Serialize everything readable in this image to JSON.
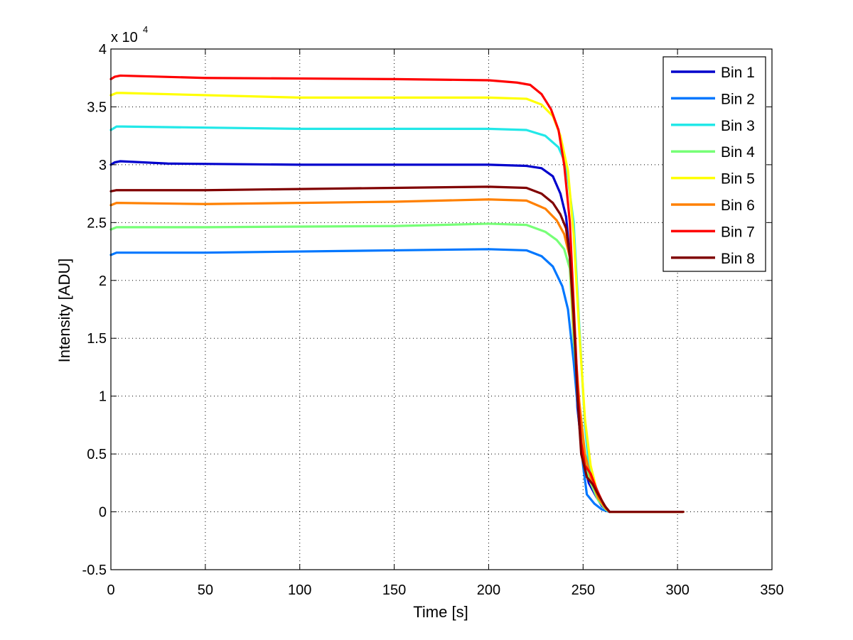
{
  "chart_data": {
    "type": "line",
    "title": "",
    "xlabel": "Time [s]",
    "ylabel": "Intensity [ADU]",
    "xlim": [
      0,
      350
    ],
    "ylim": [
      -0.5,
      4
    ],
    "xticks": [
      0,
      50,
      100,
      150,
      200,
      250,
      300,
      350
    ],
    "xtick_labels": [
      "0",
      "50",
      "100",
      "150",
      "200",
      "250",
      "300",
      "350"
    ],
    "yticks": [
      -0.5,
      0,
      0.5,
      1,
      1.5,
      2,
      2.5,
      3,
      3.5,
      4
    ],
    "ytick_labels": [
      "-0.5",
      "0",
      "0.5",
      "1",
      "1.5",
      "2",
      "2.5",
      "3",
      "3.5",
      "4"
    ],
    "y_multiplier": {
      "base": "x 10",
      "exponent": "4"
    },
    "grid": true,
    "legend_position": "top-right",
    "series": [
      {
        "name": "Bin 1",
        "color": "#0000cc",
        "points": [
          [
            0,
            3.0
          ],
          [
            2,
            3.02
          ],
          [
            5,
            3.03
          ],
          [
            30,
            3.01
          ],
          [
            100,
            3.0
          ],
          [
            200,
            3.0
          ],
          [
            220,
            2.99
          ],
          [
            228,
            2.97
          ],
          [
            234,
            2.9
          ],
          [
            238,
            2.75
          ],
          [
            241,
            2.55
          ],
          [
            243,
            2.2
          ],
          [
            245,
            1.6
          ],
          [
            247,
            0.9
          ],
          [
            250,
            0.45
          ],
          [
            253,
            0.25
          ],
          [
            257,
            0.13
          ],
          [
            260,
            0.05
          ],
          [
            264,
            0.0
          ],
          [
            303,
            0.0
          ]
        ]
      },
      {
        "name": "Bin 2",
        "color": "#0077ff",
        "points": [
          [
            0,
            2.22
          ],
          [
            3,
            2.24
          ],
          [
            50,
            2.24
          ],
          [
            150,
            2.26
          ],
          [
            200,
            2.27
          ],
          [
            220,
            2.26
          ],
          [
            228,
            2.21
          ],
          [
            234,
            2.12
          ],
          [
            239,
            1.95
          ],
          [
            242,
            1.75
          ],
          [
            245,
            1.3
          ],
          [
            248,
            0.75
          ],
          [
            250,
            0.4
          ],
          [
            252,
            0.15
          ],
          [
            256,
            0.07
          ],
          [
            260,
            0.02
          ],
          [
            264,
            0.0
          ],
          [
            303,
            0.0
          ]
        ]
      },
      {
        "name": "Bin 3",
        "color": "#22e8e8",
        "points": [
          [
            0,
            3.3
          ],
          [
            3,
            3.33
          ],
          [
            6,
            3.33
          ],
          [
            100,
            3.31
          ],
          [
            200,
            3.31
          ],
          [
            220,
            3.3
          ],
          [
            230,
            3.25
          ],
          [
            237,
            3.15
          ],
          [
            241,
            3.0
          ],
          [
            245,
            2.5
          ],
          [
            248,
            1.6
          ],
          [
            251,
            0.75
          ],
          [
            253,
            0.4
          ],
          [
            256,
            0.25
          ],
          [
            260,
            0.08
          ],
          [
            264,
            0.0
          ],
          [
            303,
            0.0
          ]
        ]
      },
      {
        "name": "Bin 4",
        "color": "#77ff77",
        "points": [
          [
            0,
            2.44
          ],
          [
            3,
            2.46
          ],
          [
            50,
            2.46
          ],
          [
            150,
            2.47
          ],
          [
            200,
            2.49
          ],
          [
            220,
            2.48
          ],
          [
            230,
            2.42
          ],
          [
            236,
            2.35
          ],
          [
            240,
            2.27
          ],
          [
            243,
            2.1
          ],
          [
            245,
            1.5
          ],
          [
            248,
            0.9
          ],
          [
            251,
            0.45
          ],
          [
            254,
            0.25
          ],
          [
            258,
            0.1
          ],
          [
            262,
            0.02
          ],
          [
            264,
            0.0
          ],
          [
            303,
            0.0
          ]
        ]
      },
      {
        "name": "Bin 5",
        "color": "#ffff00",
        "points": [
          [
            0,
            3.6
          ],
          [
            3,
            3.62
          ],
          [
            6,
            3.62
          ],
          [
            100,
            3.58
          ],
          [
            200,
            3.58
          ],
          [
            220,
            3.57
          ],
          [
            228,
            3.52
          ],
          [
            234,
            3.42
          ],
          [
            238,
            3.25
          ],
          [
            242,
            2.95
          ],
          [
            245,
            2.4
          ],
          [
            248,
            1.55
          ],
          [
            251,
            0.8
          ],
          [
            254,
            0.4
          ],
          [
            257,
            0.2
          ],
          [
            261,
            0.05
          ],
          [
            264,
            0.0
          ],
          [
            303,
            0.0
          ]
        ]
      },
      {
        "name": "Bin 6",
        "color": "#ff8000",
        "points": [
          [
            0,
            2.65
          ],
          [
            3,
            2.67
          ],
          [
            50,
            2.66
          ],
          [
            150,
            2.68
          ],
          [
            200,
            2.7
          ],
          [
            220,
            2.69
          ],
          [
            230,
            2.62
          ],
          [
            236,
            2.52
          ],
          [
            240,
            2.4
          ],
          [
            243,
            2.2
          ],
          [
            245,
            1.6
          ],
          [
            248,
            0.95
          ],
          [
            251,
            0.5
          ],
          [
            254,
            0.3
          ],
          [
            258,
            0.12
          ],
          [
            262,
            0.03
          ],
          [
            264,
            0.0
          ],
          [
            303,
            0.0
          ]
        ]
      },
      {
        "name": "Bin 7",
        "color": "#ff0000",
        "points": [
          [
            0,
            3.74
          ],
          [
            2,
            3.76
          ],
          [
            5,
            3.77
          ],
          [
            50,
            3.75
          ],
          [
            150,
            3.74
          ],
          [
            200,
            3.73
          ],
          [
            215,
            3.71
          ],
          [
            222,
            3.69
          ],
          [
            228,
            3.61
          ],
          [
            233,
            3.48
          ],
          [
            237,
            3.3
          ],
          [
            240,
            3.0
          ],
          [
            243,
            2.5
          ],
          [
            245,
            1.8
          ],
          [
            247,
            1.1
          ],
          [
            249,
            0.6
          ],
          [
            251,
            0.4
          ],
          [
            254,
            0.33
          ],
          [
            257,
            0.2
          ],
          [
            261,
            0.06
          ],
          [
            264,
            0.0
          ],
          [
            303,
            0.0
          ]
        ]
      },
      {
        "name": "Bin 8",
        "color": "#800000",
        "points": [
          [
            0,
            2.77
          ],
          [
            3,
            2.78
          ],
          [
            50,
            2.78
          ],
          [
            100,
            2.79
          ],
          [
            150,
            2.8
          ],
          [
            200,
            2.81
          ],
          [
            220,
            2.8
          ],
          [
            228,
            2.75
          ],
          [
            234,
            2.67
          ],
          [
            238,
            2.57
          ],
          [
            241,
            2.45
          ],
          [
            243,
            2.2
          ],
          [
            245,
            1.7
          ],
          [
            247,
            1.0
          ],
          [
            249,
            0.5
          ],
          [
            252,
            0.3
          ],
          [
            255,
            0.24
          ],
          [
            258,
            0.15
          ],
          [
            262,
            0.04
          ],
          [
            264,
            0.0
          ],
          [
            303,
            0.0
          ]
        ]
      }
    ]
  }
}
